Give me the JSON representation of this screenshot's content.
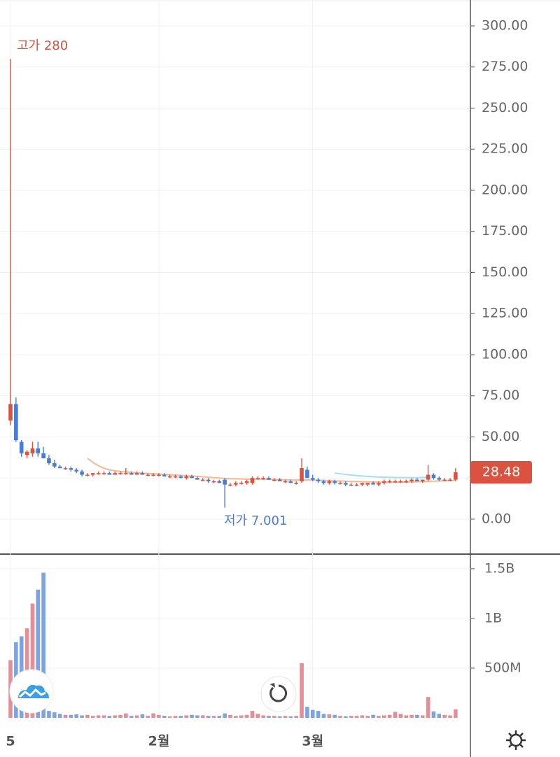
{
  "chart_data": {
    "type": "candlestick",
    "categories": [
      "5",
      null,
      null,
      null,
      null,
      null,
      null,
      null,
      null,
      null,
      null,
      null,
      null,
      null,
      null,
      null,
      null,
      null,
      null,
      null,
      null,
      null,
      null,
      null,
      null,
      null,
      null,
      "2월",
      null,
      null,
      null,
      null,
      null,
      null,
      null,
      null,
      null,
      null,
      null,
      null,
      null,
      null,
      null,
      null,
      null,
      null,
      null,
      null,
      null,
      null,
      null,
      null,
      null,
      null,
      null,
      "3월",
      null,
      null,
      null,
      null,
      null,
      null,
      null,
      null,
      null,
      null,
      null,
      null,
      null,
      null,
      null,
      null,
      null,
      null,
      null,
      null,
      null,
      null,
      null,
      null,
      null,
      null
    ],
    "open": [
      60,
      70,
      47,
      39,
      40,
      43,
      40,
      37,
      34,
      32,
      31,
      31,
      30,
      29,
      27,
      27,
      28,
      28,
      28,
      27,
      28,
      28,
      28,
      27,
      28,
      27,
      27,
      27,
      27,
      26,
      26,
      26,
      25,
      26,
      25,
      24,
      24,
      23,
      23,
      24,
      21,
      21,
      22,
      22,
      22,
      25,
      25,
      25,
      24,
      24,
      23,
      23,
      22,
      23,
      30,
      25,
      24,
      23,
      22,
      23,
      22,
      22,
      21,
      21,
      21,
      21,
      22,
      21,
      22,
      23,
      23,
      23,
      23,
      23,
      24,
      23,
      24,
      27,
      25,
      24,
      24,
      24
    ],
    "high": [
      280,
      74,
      48,
      42,
      47,
      47,
      44,
      39,
      36,
      33,
      32,
      32,
      31,
      30,
      28,
      28,
      29,
      29,
      29,
      29,
      29,
      31,
      29,
      29,
      29,
      28,
      28,
      28,
      28,
      27,
      27,
      27,
      27,
      27,
      26,
      25,
      25,
      24,
      24,
      25,
      22,
      23,
      23,
      24,
      26,
      26,
      26,
      26,
      25,
      25,
      24,
      24,
      23,
      37,
      32,
      27,
      25,
      24,
      24,
      24,
      23,
      23,
      22,
      22,
      22,
      22,
      23,
      23,
      24,
      24,
      24,
      24,
      24,
      25,
      25,
      24,
      33,
      28,
      26,
      25,
      25,
      31
    ],
    "low": [
      57,
      47,
      38,
      37,
      38,
      38,
      37,
      33,
      31,
      31,
      30,
      29,
      28,
      26,
      26,
      26,
      27,
      27,
      27,
      27,
      27,
      27,
      27,
      27,
      27,
      26,
      26,
      26,
      26,
      25,
      25,
      25,
      24,
      25,
      24,
      23,
      22,
      22,
      22,
      7.001,
      20,
      20,
      21,
      21,
      21,
      24,
      24,
      24,
      23,
      23,
      22,
      22,
      21,
      22,
      25,
      23,
      22,
      21,
      21,
      21,
      21,
      20,
      20,
      20,
      20,
      20,
      21,
      20,
      21,
      22,
      22,
      22,
      22,
      22,
      23,
      22,
      23,
      24,
      23,
      23,
      23,
      23
    ],
    "close": [
      70,
      48,
      40,
      41,
      43,
      40,
      37,
      34,
      32,
      31,
      31,
      30,
      29,
      27,
      27,
      28,
      28,
      28,
      27,
      28,
      28,
      28,
      27,
      28,
      27,
      27,
      27,
      27,
      26,
      26,
      26,
      25,
      26,
      25,
      24,
      24,
      23,
      23,
      22,
      21,
      21,
      22,
      22,
      23,
      25,
      25,
      25,
      24,
      24,
      23,
      23,
      22,
      22,
      31,
      25,
      24,
      23,
      22,
      23,
      22,
      22,
      21,
      21,
      21,
      22,
      22,
      21,
      22,
      23,
      23,
      23,
      23,
      23,
      24,
      23,
      24,
      27,
      25,
      24,
      24,
      24,
      28.48
    ],
    "volume": [
      580000000,
      760000000,
      820000000,
      900000000,
      1150000000,
      1290000000,
      1460000000,
      70000000,
      55000000,
      40000000,
      30000000,
      30000000,
      35000000,
      25000000,
      30000000,
      20000000,
      25000000,
      25000000,
      20000000,
      25000000,
      30000000,
      45000000,
      20000000,
      25000000,
      35000000,
      20000000,
      45000000,
      30000000,
      20000000,
      15000000,
      20000000,
      20000000,
      25000000,
      30000000,
      25000000,
      25000000,
      20000000,
      20000000,
      20000000,
      45000000,
      30000000,
      20000000,
      25000000,
      30000000,
      70000000,
      40000000,
      25000000,
      20000000,
      20000000,
      15000000,
      20000000,
      15000000,
      20000000,
      550000000,
      110000000,
      80000000,
      70000000,
      40000000,
      35000000,
      30000000,
      20000000,
      15000000,
      20000000,
      20000000,
      25000000,
      20000000,
      30000000,
      20000000,
      25000000,
      30000000,
      60000000,
      40000000,
      25000000,
      30000000,
      30000000,
      25000000,
      210000000,
      65000000,
      40000000,
      30000000,
      25000000,
      85000000
    ],
    "up_color": "#db5240",
    "down_color": "#4a7bd6",
    "volume_up_color": "#e48e98",
    "volume_down_color": "#7ea3e0",
    "moving_averages": [
      {
        "color": "#f7b98f",
        "values": [
          null,
          null,
          null,
          null,
          null,
          null,
          null,
          null,
          null,
          null,
          null,
          null,
          null,
          null,
          37,
          34.5,
          32.5,
          31,
          30,
          29.4,
          29,
          28.7,
          28.4,
          28.2,
          28,
          27.8,
          27.6,
          27.4,
          27.2,
          27,
          26.8,
          26.6,
          26.4,
          26.2,
          26,
          25.8,
          25.5,
          25.2,
          25,
          24.8,
          24.6,
          24.5,
          24.4,
          24.3,
          24.3,
          24.3,
          24.2,
          24.2,
          24.1,
          24,
          23.9,
          23.8,
          23.7,
          23.8,
          23.8,
          23.7,
          23.6,
          23.5,
          23.4,
          23.3,
          23.2,
          23.1,
          23,
          22.9,
          22.8,
          22.7,
          22.6,
          22.5,
          22.5,
          22.5,
          22.5,
          22.5,
          22.6,
          22.6,
          22.7,
          22.8,
          23,
          23.1,
          23.2,
          23.3,
          23.4,
          23.5
        ]
      },
      {
        "color": "#a9dcf0",
        "values": [
          null,
          null,
          null,
          null,
          null,
          null,
          null,
          null,
          null,
          null,
          null,
          null,
          null,
          null,
          null,
          null,
          null,
          null,
          null,
          null,
          null,
          null,
          null,
          null,
          null,
          null,
          null,
          null,
          null,
          null,
          null,
          null,
          null,
          null,
          null,
          null,
          null,
          null,
          null,
          null,
          null,
          null,
          null,
          null,
          null,
          null,
          null,
          null,
          null,
          null,
          null,
          null,
          null,
          null,
          null,
          null,
          null,
          null,
          null,
          28,
          27.6,
          27.2,
          26.8,
          26.5,
          26.2,
          26,
          25.8,
          25.6,
          25.5,
          25.4,
          25.3,
          25.3,
          25.2,
          25.2,
          25.2,
          25.3,
          25.4,
          null,
          null,
          null,
          null,
          null
        ]
      }
    ],
    "ylim": [
      -20.43,
      315.74
    ],
    "yticks": [
      {
        "value": 0,
        "label": "0.00"
      },
      {
        "value": 25,
        "label": "25.00"
      },
      {
        "value": 50,
        "label": "50.00"
      },
      {
        "value": 75,
        "label": "75.00"
      },
      {
        "value": 100,
        "label": "100.00"
      },
      {
        "value": 125,
        "label": "125.00"
      },
      {
        "value": 150,
        "label": "150.00"
      },
      {
        "value": 175,
        "label": "175.00"
      },
      {
        "value": 200,
        "label": "200.00"
      },
      {
        "value": 225,
        "label": "225.00"
      },
      {
        "value": 250,
        "label": "250.00"
      },
      {
        "value": 275,
        "label": "275.00"
      },
      {
        "value": 300,
        "label": "300.00"
      }
    ],
    "volume_lim": [
      0,
      1640000000
    ],
    "volume_ticks": [
      {
        "value": 500000000,
        "label": "500M"
      },
      {
        "value": 1000000000,
        "label": "1B"
      },
      {
        "value": 1500000000,
        "label": "1.5B"
      }
    ],
    "last_price": 28.48,
    "annotations": [
      {
        "text": "고가 280"
      },
      {
        "text": "저가 7.001"
      }
    ]
  }
}
